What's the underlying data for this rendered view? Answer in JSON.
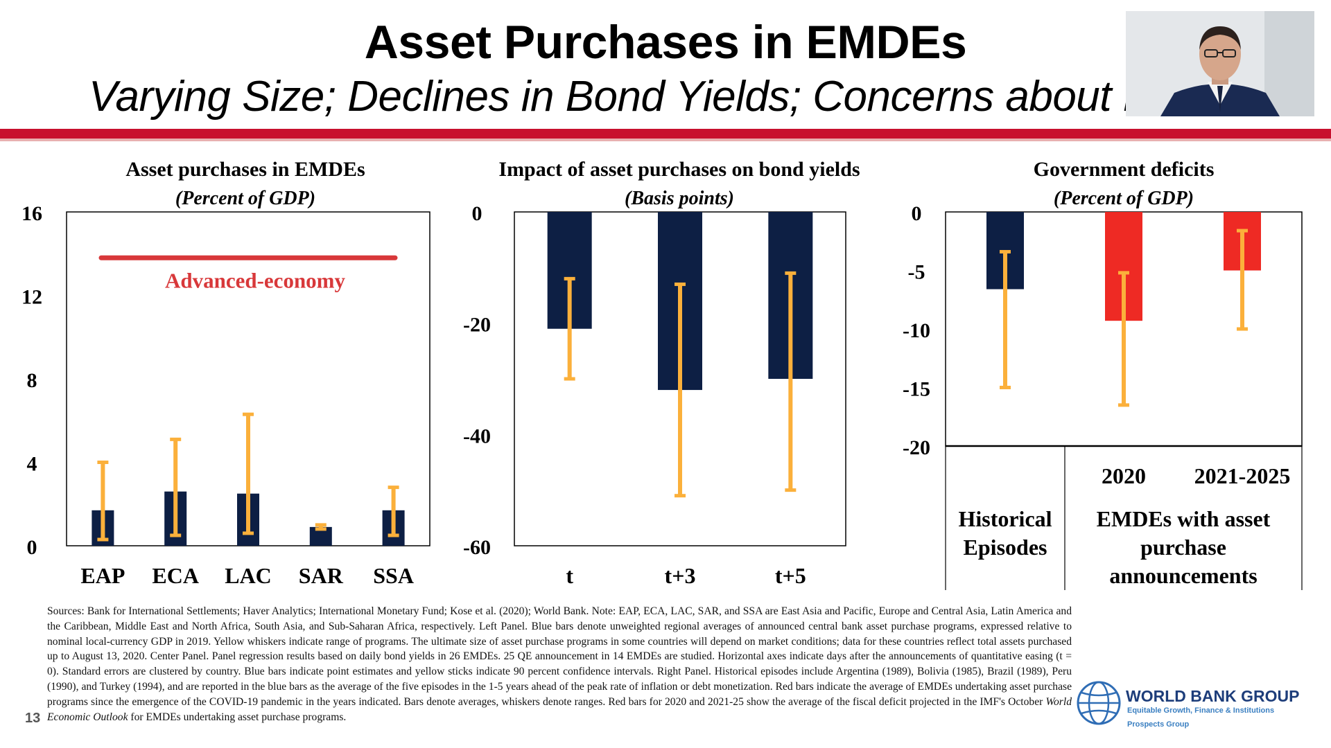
{
  "slide": {
    "title": "Asset Purchases in EMDEs",
    "subtitle": "Varying Size; Declines in Bond Yields; Concerns about Deficit Financing",
    "slide_number": "13"
  },
  "colors": {
    "navy": "#0d1f44",
    "red": "#ee2a24",
    "yellow": "#fbb03b",
    "accent_red": "#c8102e"
  },
  "footnote": {
    "main": "Sources: Bank for International Settlements; Haver Analytics; International Monetary Fund; Kose et al. (2020); World Bank. Note: EAP, ECA, LAC, SAR, and SSA are East Asia and Pacific, Europe and Central Asia, Latin America and the Caribbean, Middle East and North Africa, South Asia, and Sub-Saharan Africa, respectively. Left Panel. Blue bars denote unweighted regional averages of announced central bank asset purchase programs, expressed relative to nominal local-currency GDP in 2019. Yellow whiskers indicate range of programs. The ultimate size of asset purchase programs in some countries will depend on market conditions; data for these countries reflect total assets purchased up to August 13, 2020. Center Panel. Panel regression results based on daily bond yields in 26 EMDEs. 25 QE announcement in 14 EMDEs are studied. Horizontal axes indicate days after the announcements of quantitative easing (t = 0). Standard errors are clustered by country. Blue bars indicate point estimates and yellow sticks indicate 90 percent confidence intervals. Right Panel. Historical episodes include Argentina (1989), Bolivia (1985), Brazil (1989), Peru (1990), and Turkey (1994), and are reported in the blue bars as the average of the five episodes in the 1-5 years ahead of the peak rate of inflation or debt monetization. Red bars indicate the average of EMDEs undertaking asset purchase programs since the emergence of the COVID-19 pandemic in the years indicated. Bars denote averages, whiskers denote ranges. Red bars for 2020 and 2021-25 show the average of the fiscal deficit projected in the IMF's October",
    "weo": "World Economic Outlook",
    "tail": "for EMDEs undertaking asset purchase programs."
  },
  "logo": {
    "name": "WORLD BANK GROUP",
    "tagline": "Equitable Growth, Finance & Institutions",
    "unit": "Prospects Group"
  },
  "chart_data": [
    {
      "type": "bar",
      "title": "Asset purchases in EMDEs",
      "subtitle": "(Percent of GDP)",
      "categories": [
        "EAP",
        "ECA",
        "LAC",
        "SAR",
        "SSA"
      ],
      "values": [
        1.7,
        2.6,
        2.5,
        0.9,
        1.7
      ],
      "ranges": [
        [
          0.3,
          4.0
        ],
        [
          0.5,
          5.1
        ],
        [
          0.6,
          6.3
        ],
        [
          0.8,
          1.0
        ],
        [
          0.5,
          2.8
        ]
      ],
      "ylim": [
        0,
        16
      ],
      "yticks": [
        0,
        4,
        8,
        12,
        16
      ],
      "reference_line": {
        "label": "Advanced-economy",
        "value": 13.8
      }
    },
    {
      "type": "bar",
      "title": "Impact of asset purchases on bond yields",
      "subtitle": "(Basis points)",
      "categories": [
        "t",
        "t+3",
        "t+5"
      ],
      "values": [
        -21,
        -32,
        -30
      ],
      "ranges": [
        [
          -30,
          -12
        ],
        [
          -51,
          -13
        ],
        [
          -50,
          -11
        ]
      ],
      "ylim": [
        -60,
        0
      ],
      "yticks": [
        0,
        -20,
        -40,
        -60
      ]
    },
    {
      "type": "bar",
      "title": "Government deficits",
      "subtitle": "(Percent of GDP)",
      "categories": [
        "Historical Episodes",
        "2020",
        "2021-2025"
      ],
      "group_labels": [
        "Historical Episodes",
        "EMDEs with asset purchase announcements"
      ],
      "values": [
        -6.6,
        -9.3,
        -5.0
      ],
      "ranges": [
        [
          -15,
          -3.4
        ],
        [
          -16.5,
          -5.2
        ],
        [
          -10,
          -1.6
        ]
      ],
      "series_colors": [
        "navy",
        "red",
        "red"
      ],
      "ylim": [
        -20,
        0
      ],
      "yticks": [
        0,
        -5,
        -10,
        -15,
        -20
      ]
    }
  ]
}
